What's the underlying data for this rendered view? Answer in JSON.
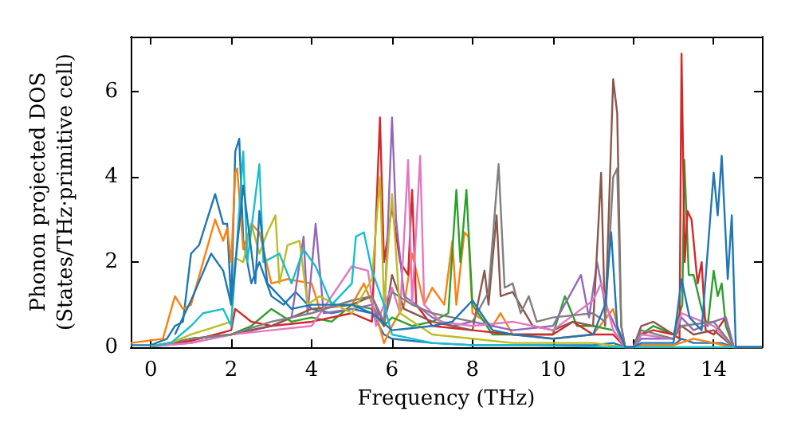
{
  "chart_data": {
    "type": "line",
    "xlabel": "Frequency (THz)",
    "ylabel": "Phonon projected DOS\n(States/THz·primitive cell)",
    "xlim": [
      -0.5,
      15.2
    ],
    "xticks": [
      0,
      2,
      4,
      6,
      8,
      10,
      12,
      14
    ],
    "ylim": [
      0,
      7.3
    ],
    "yticks": [
      0,
      2,
      4,
      6
    ],
    "series": [
      {
        "color": "#1f77b4",
        "x": [
          -0.5,
          0,
          0.4,
          0.6,
          0.8,
          1.0,
          1.2,
          1.4,
          1.6,
          1.8,
          1.9,
          2.0,
          2.1,
          2.2,
          2.3,
          2.5,
          2.7,
          3.0,
          3.3,
          3.6,
          4.0,
          4.5,
          5.0,
          5.5,
          5.8,
          6.0,
          7.0,
          8.0,
          9,
          11,
          11.5,
          11.8,
          12,
          12.2,
          13,
          13.2,
          13.5,
          14,
          14.2,
          14.5,
          15.2
        ],
        "values": [
          0.05,
          0.05,
          0.2,
          0.5,
          0.6,
          2.2,
          2.4,
          3.0,
          3.6,
          2.9,
          2.9,
          1.0,
          4.6,
          4.9,
          2.5,
          1.5,
          2.0,
          1.2,
          1.0,
          1.3,
          0.9,
          0.8,
          0.9,
          0.8,
          0.3,
          0.2,
          0.1,
          0.05,
          0.05,
          0.05,
          0.1,
          0,
          0,
          0.05,
          0.05,
          0.2,
          0.1,
          0.1,
          0.1,
          0,
          0
        ]
      },
      {
        "color": "#ff7f0e",
        "x": [
          -0.5,
          0.3,
          0.6,
          0.8,
          1.0,
          1.3,
          1.6,
          1.8,
          1.9,
          2.0,
          2.1,
          2.15,
          2.3,
          2.5,
          2.7,
          3.0,
          3.4,
          4.0,
          4.2,
          5.0,
          5.3,
          5.6,
          5.8,
          6.0,
          6.3,
          6.5,
          6.8,
          7.0,
          7.3,
          7.5,
          7.6,
          7.8,
          7.9,
          8.0,
          8.5,
          8.7,
          9.0,
          10,
          11,
          11.5,
          11.7,
          11.8,
          12,
          12.2,
          13,
          13.5,
          14,
          14.5,
          15.2
        ],
        "values": [
          0.1,
          0.2,
          1.2,
          0.9,
          1.0,
          2.0,
          3.0,
          2.5,
          2.8,
          2.0,
          4.1,
          4.2,
          2.3,
          2.9,
          2.7,
          1.5,
          1.6,
          1.5,
          0.9,
          1.0,
          1.5,
          0.8,
          0.1,
          0.5,
          1.0,
          2.2,
          1.0,
          1.4,
          1.0,
          2.5,
          1.0,
          2.7,
          2.6,
          0.8,
          0.5,
          0.8,
          0.3,
          0.2,
          0.3,
          0.9,
          0.1,
          0,
          0,
          0.05,
          0.05,
          0.2,
          0.1,
          0,
          0
        ]
      },
      {
        "color": "#2ca02c",
        "x": [
          0,
          0.5,
          1.0,
          2.0,
          2.5,
          3.0,
          3.5,
          4.0,
          4.5,
          5.0,
          5.5,
          5.8,
          6.0,
          6.5,
          7.0,
          7.4,
          7.6,
          7.7,
          7.85,
          8.0,
          8.5,
          9,
          10,
          10.3,
          10.6,
          11,
          11.5,
          11.8,
          12,
          12.2,
          12.5,
          13,
          13.22,
          13.27,
          13.38,
          13.5,
          13.7,
          13.85,
          14.0,
          14.1,
          14.2,
          14.3,
          14.5,
          15.2
        ],
        "values": [
          0.02,
          0.1,
          0.2,
          0.3,
          0.5,
          0.9,
          0.6,
          0.7,
          0.6,
          1.0,
          0.9,
          0.5,
          0.7,
          0.5,
          0.6,
          0.8,
          3.7,
          2.0,
          3.7,
          1.0,
          0.3,
          0.3,
          0.3,
          1.2,
          0.5,
          0.5,
          0.4,
          0,
          0,
          0.3,
          0.5,
          0.3,
          1.0,
          4.4,
          1.7,
          1.7,
          0.9,
          0.5,
          1.8,
          1.2,
          1.5,
          0.5,
          0,
          0
        ]
      },
      {
        "color": "#d62728",
        "x": [
          0,
          1,
          2,
          2.1,
          2.5,
          3,
          4,
          5,
          5.5,
          5.7,
          5.8,
          6.0,
          6.2,
          6.4,
          6.5,
          6.6,
          7,
          8,
          9,
          10,
          10.5,
          11,
          11.5,
          11.8,
          12,
          12.2,
          12.5,
          13,
          13.15,
          13.2,
          13.28,
          13.35,
          13.45,
          13.6,
          13.7,
          13.8,
          14.0,
          14.3,
          14.5,
          15.2
        ],
        "values": [
          0.02,
          0.15,
          0.4,
          0.9,
          0.6,
          0.5,
          0.6,
          0.8,
          0.6,
          5.4,
          2.0,
          3.3,
          2.0,
          1.7,
          3.7,
          1.0,
          0.5,
          0.4,
          0.3,
          0.3,
          0.6,
          0.3,
          0.3,
          0,
          0,
          0.3,
          0.4,
          0.3,
          0.2,
          6.9,
          2.0,
          3.2,
          3.0,
          1.5,
          2.0,
          0.4,
          0.3,
          0.7,
          0,
          0
        ]
      },
      {
        "color": "#9467bd",
        "x": [
          0,
          1,
          2,
          3,
          3.5,
          3.8,
          3.9,
          4.1,
          4.3,
          5,
          5.5,
          5.8,
          6.0,
          6.1,
          6.3,
          6.6,
          7,
          7.5,
          8,
          8.5,
          9,
          10,
          10.7,
          10.9,
          11.1,
          11.3,
          11.6,
          11.8,
          12,
          12.2,
          13,
          13.2,
          13.5,
          14,
          14.3,
          14.5,
          15.2
        ],
        "values": [
          0.02,
          0.1,
          0.3,
          0.5,
          0.7,
          2.6,
          0.8,
          2.9,
          0.8,
          0.9,
          1.0,
          0.5,
          5.4,
          3.0,
          1.2,
          1.0,
          0.7,
          0.5,
          0.6,
          0.5,
          0.4,
          0.5,
          1.7,
          0.7,
          2.0,
          1.0,
          0.4,
          0,
          0,
          0.2,
          0.2,
          0.7,
          0.4,
          0.6,
          0.7,
          0,
          0
        ]
      },
      {
        "color": "#8c564b",
        "x": [
          0,
          1,
          2,
          3,
          4,
          5,
          5.5,
          5.8,
          6.0,
          6.3,
          7,
          8,
          8.3,
          8.4,
          8.6,
          8.7,
          9,
          9.5,
          10,
          10.5,
          11,
          11.2,
          11.3,
          11.5,
          11.6,
          11.7,
          11.8,
          12,
          12.2,
          12.5,
          13,
          13.2,
          13.5,
          14,
          14.5,
          15.2
        ],
        "values": [
          0.02,
          0.2,
          0.3,
          0.5,
          0.9,
          1.0,
          1.2,
          0.5,
          1.7,
          0.9,
          0.6,
          0.4,
          1.8,
          1.0,
          3.1,
          1.2,
          1.3,
          0.5,
          0.4,
          0.6,
          0.5,
          4.1,
          0.5,
          6.3,
          5.5,
          0.5,
          0,
          0,
          0.5,
          0.6,
          0.3,
          0.5,
          0.3,
          0.4,
          0,
          0
        ]
      },
      {
        "color": "#e377c2",
        "x": [
          0,
          1,
          2,
          3,
          4,
          5,
          5.4,
          5.6,
          5.8,
          6.0,
          6.2,
          6.4,
          6.5,
          6.7,
          6.8,
          7.2,
          8,
          9,
          10,
          11,
          11.2,
          11.5,
          11.8,
          12,
          12.2,
          13,
          13.2,
          14,
          14.5,
          15.2
        ],
        "values": [
          0.02,
          0.1,
          0.3,
          0.4,
          0.5,
          1.9,
          1.8,
          0.5,
          1.0,
          1.4,
          0.8,
          4.4,
          1.0,
          4.5,
          1.0,
          0.6,
          0.5,
          0.6,
          0.4,
          1.1,
          1.5,
          0.4,
          0,
          0,
          0.3,
          0.2,
          0.8,
          0.5,
          0,
          0
        ]
      },
      {
        "color": "#7f7f7f",
        "x": [
          0,
          1,
          2,
          3,
          4,
          5,
          5.5,
          5.8,
          6.0,
          6.5,
          7,
          8,
          8.4,
          8.65,
          8.8,
          9.0,
          9.2,
          9.4,
          9.6,
          10,
          11,
          11.3,
          11.5,
          11.6,
          11.7,
          11.8,
          12,
          12.2,
          13,
          13.2,
          14,
          14.5,
          15.2
        ],
        "values": [
          0.02,
          0.2,
          0.3,
          0.6,
          0.8,
          1.1,
          1.2,
          0.6,
          1.3,
          1.0,
          0.8,
          0.6,
          1.3,
          4.3,
          1.4,
          1.5,
          0.8,
          1.2,
          0.6,
          0.7,
          0.8,
          0.6,
          4.0,
          4.2,
          0.5,
          0,
          0,
          0.4,
          0.2,
          0.5,
          0.6,
          0,
          0
        ]
      },
      {
        "color": "#bcbd22",
        "x": [
          0,
          0.5,
          1,
          2,
          2.1,
          2.3,
          2.5,
          2.7,
          2.9,
          3.1,
          3.2,
          3.4,
          3.7,
          3.9,
          4.2,
          5,
          5.5,
          5.7,
          5.8,
          6.0,
          6.2,
          7,
          8,
          9,
          10,
          11,
          11.8,
          15.2
        ],
        "values": [
          0.02,
          0.1,
          0.3,
          0.6,
          2.1,
          2.0,
          2.9,
          2.2,
          2.7,
          3.1,
          1.5,
          2.4,
          2.5,
          1.0,
          1.2,
          0.8,
          1.6,
          4.0,
          1.0,
          3.6,
          0.8,
          0.3,
          0.2,
          0.1,
          0.1,
          0.1,
          0,
          0
        ]
      },
      {
        "color": "#17becf",
        "x": [
          0,
          0.5,
          1,
          1.3,
          1.8,
          2.0,
          2.3,
          2.4,
          2.7,
          2.8,
          3.2,
          3.5,
          3.8,
          4.1,
          4.5,
          5.0,
          5.1,
          5.3,
          5.5,
          5.8,
          6.0,
          7,
          8,
          9,
          11.8,
          15.2
        ],
        "values": [
          0.02,
          0.1,
          0.5,
          0.8,
          0.9,
          0.5,
          4.6,
          2.0,
          4.3,
          2.0,
          2.2,
          1.5,
          2.3,
          1.9,
          1.0,
          1.5,
          2.6,
          2.7,
          1.8,
          1.0,
          0.3,
          0.1,
          0.05,
          0.05,
          0,
          0
        ]
      },
      {
        "color": "#1f77b4",
        "x": [
          0.6,
          1.0,
          1.5,
          1.8,
          2.0,
          2.3,
          2.6,
          2.7,
          2.9,
          3.2,
          3.5,
          4,
          5,
          5.5,
          6,
          7,
          7.5,
          8,
          8.5,
          9,
          10,
          11,
          11.3,
          11.45,
          11.6,
          11.8,
          12,
          12.2,
          13,
          13.2,
          13.4,
          13.7,
          14.0,
          14.1,
          14.2,
          14.35,
          14.45,
          14.55,
          15.2
        ],
        "values": [
          0.3,
          1.1,
          2.2,
          1.8,
          1.0,
          3.8,
          1.5,
          3.2,
          1.5,
          1.2,
          0.9,
          1.0,
          1.0,
          0.8,
          0.4,
          0.5,
          0.6,
          1.1,
          0.4,
          0.3,
          0.2,
          0.3,
          1.0,
          2.7,
          0.5,
          0,
          0,
          0.1,
          0.1,
          1.6,
          0.7,
          0.4,
          4.1,
          3.1,
          4.5,
          1.6,
          3.1,
          0,
          0
        ]
      }
    ]
  }
}
